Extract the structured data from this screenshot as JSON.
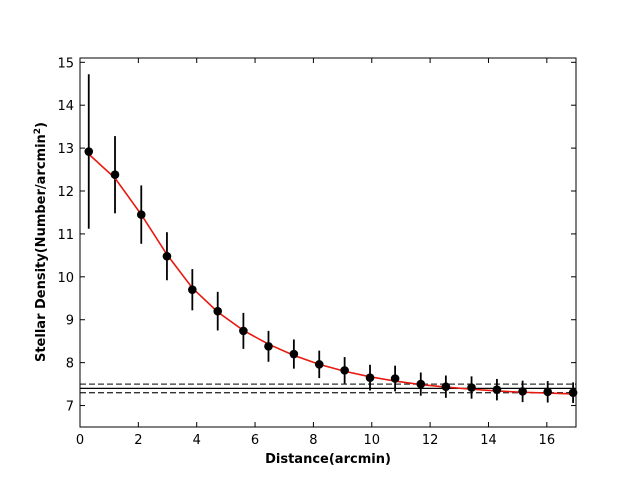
{
  "chart_data": {
    "type": "scatter",
    "xlabel": "Distance(arcmin)",
    "ylabel_main": "Stellar Density(Number/arcmin",
    "ylabel_sup": "2",
    "ylabel_close": ")",
    "xlim": [
      0,
      17
    ],
    "ylim": [
      6.5,
      15.1
    ],
    "xticks": [
      0,
      2,
      4,
      6,
      8,
      10,
      12,
      14,
      16
    ],
    "yticks": [
      7,
      8,
      9,
      10,
      11,
      12,
      13,
      14,
      15
    ],
    "grid": false,
    "series": [
      {
        "kind": "points_with_errorbars",
        "color": "#000000",
        "x": [
          0.3,
          1.2,
          2.1,
          2.98,
          3.85,
          4.72,
          5.6,
          6.46,
          7.33,
          8.2,
          9.07,
          9.94,
          10.8,
          11.68,
          12.54,
          13.42,
          14.29,
          15.17,
          16.03,
          16.9
        ],
        "y": [
          12.92,
          12.38,
          11.45,
          10.48,
          9.7,
          9.2,
          8.74,
          8.38,
          8.2,
          7.96,
          7.82,
          7.65,
          7.63,
          7.5,
          7.44,
          7.42,
          7.37,
          7.33,
          7.32,
          7.3
        ],
        "yerr": [
          1.8,
          0.9,
          0.68,
          0.56,
          0.48,
          0.45,
          0.42,
          0.36,
          0.34,
          0.32,
          0.31,
          0.3,
          0.3,
          0.27,
          0.26,
          0.26,
          0.25,
          0.25,
          0.25,
          0.24
        ]
      },
      {
        "kind": "fit_curve",
        "color": "#e8190f",
        "x": [
          0.3,
          1.2,
          2.1,
          2.98,
          3.85,
          4.72,
          5.6,
          6.46,
          7.33,
          8.2,
          9.07,
          9.94,
          10.8,
          11.68,
          12.54,
          13.42,
          14.29,
          15.17,
          16.03,
          16.9
        ],
        "y": [
          12.86,
          12.3,
          11.45,
          10.52,
          9.74,
          9.18,
          8.75,
          8.43,
          8.17,
          7.96,
          7.8,
          7.67,
          7.57,
          7.49,
          7.43,
          7.38,
          7.34,
          7.31,
          7.29,
          7.27
        ]
      }
    ],
    "hlines": [
      {
        "y": 7.5,
        "style": "dashed",
        "color": "#333333"
      },
      {
        "y": 7.4,
        "style": "solid",
        "color": "#000000"
      },
      {
        "y": 7.3,
        "style": "dashed",
        "color": "#333333"
      }
    ]
  }
}
